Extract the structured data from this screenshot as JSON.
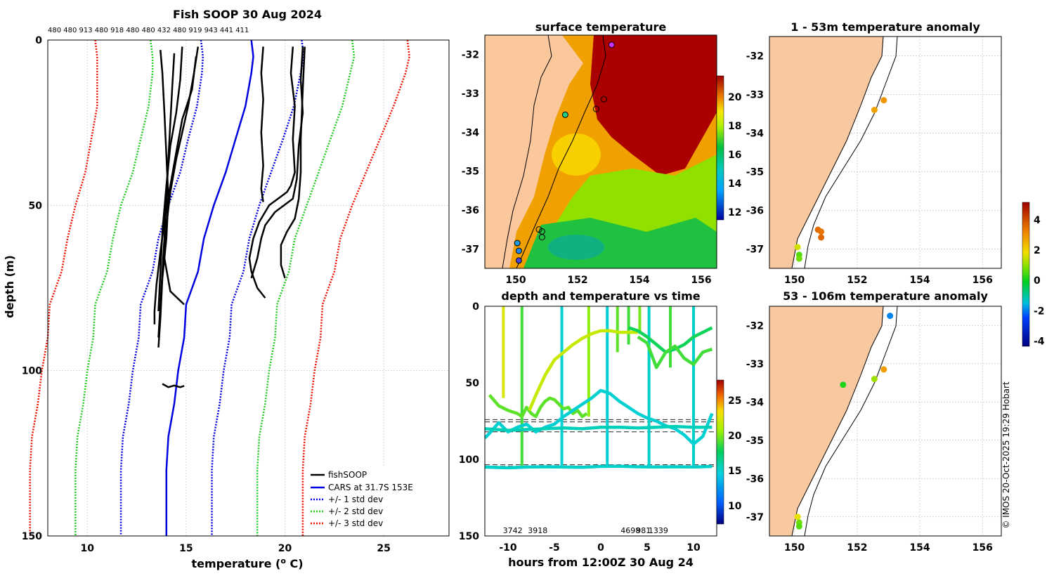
{
  "colors": {
    "land": "#f8c8a0",
    "fishsoop": "#000000",
    "cars": "#0000e0",
    "std1": "#0000e0",
    "std2": "#22cc22",
    "std3": "#ee1100"
  },
  "chart_data": [
    {
      "id": "profile",
      "type": "line",
      "title": "Fish SOOP 30 Aug 2024",
      "top_labels": "480 480 913 480 918 480 480 432 480 919 943 441 411",
      "xlabel": "temperature (",
      "xlabel_sup": "o",
      "xlabel_end": " C)",
      "ylabel": "depth (m)",
      "xlim": [
        8,
        28.3
      ],
      "ylim": [
        150,
        0
      ],
      "xticks": [
        10,
        15,
        20,
        25
      ],
      "yticks": [
        0,
        50,
        100,
        150
      ],
      "legend": {
        "position": "bottom-right",
        "entries": [
          "fishSOOP",
          "CARS at 31.7S 153E",
          "+/- 1 std dev",
          "+/- 2 std dev",
          "+/- 3 std dev"
        ]
      },
      "cars_depth": [
        0,
        5,
        10,
        20,
        30,
        40,
        50,
        60,
        70,
        80,
        90,
        100,
        110,
        120,
        130,
        140,
        150
      ],
      "cars_mean": [
        18.3,
        18.4,
        18.3,
        18.0,
        17.5,
        17.0,
        16.4,
        15.9,
        15.6,
        15.0,
        14.9,
        14.6,
        14.4,
        14.1,
        14.0,
        14.0,
        14.0
      ],
      "std1": [
        2.55,
        2.55,
        2.5,
        2.45,
        2.4,
        2.3,
        2.3,
        2.3,
        2.3,
        2.3,
        2.3,
        2.3,
        2.3,
        2.3,
        2.3,
        2.3,
        2.3
      ],
      "std2": [
        5.1,
        5.1,
        5.0,
        4.9,
        4.8,
        4.7,
        4.7,
        4.6,
        4.6,
        4.6,
        4.6,
        4.6,
        4.6,
        4.6,
        4.6,
        4.6,
        4.6
      ],
      "std3": [
        7.9,
        7.9,
        7.8,
        7.5,
        7.3,
        7.1,
        7.0,
        6.9,
        6.9,
        6.9,
        6.9,
        6.9,
        6.9,
        6.9,
        6.9,
        6.9,
        6.9
      ],
      "casts": [
        {
          "t": [
            13.7,
            13.8,
            13.9,
            14.0,
            14.1,
            14.0,
            13.8,
            13.7,
            13.6
          ],
          "d": [
            3,
            10,
            22,
            35,
            48,
            60,
            72,
            84,
            93
          ]
        },
        {
          "t": [
            14.4,
            14.3,
            14.2,
            14.1,
            14.0,
            13.9,
            13.8,
            13.7,
            13.6
          ],
          "d": [
            4,
            14,
            25,
            36,
            48,
            60,
            70,
            80,
            90
          ]
        },
        {
          "t": [
            14.8,
            14.7,
            14.5,
            14.2,
            14.0,
            13.8,
            13.7,
            13.6
          ],
          "d": [
            2,
            12,
            22,
            32,
            44,
            58,
            70,
            82
          ]
        },
        {
          "t": [
            15.6,
            15.4,
            15.1,
            14.8,
            14.5,
            14.2,
            14.0,
            13.9,
            14.2,
            14.9
          ],
          "d": [
            2,
            10,
            20,
            28,
            36,
            46,
            56,
            66,
            76,
            80
          ]
        },
        {
          "t": [
            15.5,
            15.3,
            14.8,
            14.5,
            14.2,
            13.9,
            13.7,
            13.5,
            13.4,
            13.4
          ],
          "d": [
            5,
            15,
            24,
            34,
            44,
            55,
            64,
            74,
            82,
            86
          ]
        },
        {
          "t": [
            13.8,
            14.1,
            14.4,
            14.7,
            14.9
          ],
          "d": [
            104,
            105,
            104.5,
            105,
            104.6
          ]
        },
        {
          "t": [
            18.9,
            18.8,
            18.9,
            18.8,
            18.9,
            18.8,
            18.9
          ],
          "d": [
            2,
            10,
            18,
            28,
            38,
            45,
            49
          ]
        },
        {
          "t": [
            20.4,
            20.3,
            20.5,
            20.4,
            20.5,
            20.3,
            20.1,
            19.2,
            18.7,
            18.4,
            18.2,
            18.3,
            18.6,
            19.0
          ],
          "d": [
            2,
            10,
            20,
            30,
            40,
            44,
            46,
            50,
            55,
            60,
            66,
            70,
            75,
            78
          ]
        },
        {
          "t": [
            20.9,
            20.8,
            20.9,
            20.7,
            20.6,
            20.4,
            19.5,
            19.0,
            18.8,
            18.6,
            18.3
          ],
          "d": [
            2,
            12,
            22,
            32,
            42,
            48,
            52,
            56,
            60,
            66,
            72
          ]
        },
        {
          "t": [
            21.0,
            20.9,
            20.8,
            20.8,
            20.7,
            20.5,
            20.1,
            19.8,
            19.8,
            20.0
          ],
          "d": [
            2,
            15,
            30,
            40,
            48,
            54,
            58,
            62,
            68,
            72
          ]
        }
      ]
    },
    {
      "id": "sst_map",
      "type": "heatmap",
      "title": "surface temperature",
      "xlim": [
        149,
        156.5
      ],
      "ylim": [
        -37.5,
        -31.5
      ],
      "xticks": [
        150,
        152,
        154,
        156
      ],
      "yticks": [
        -32,
        -33,
        -34,
        -35,
        -36,
        -37
      ],
      "colorbar_ticks": [
        12,
        14,
        16,
        18,
        20
      ],
      "colorbar_range": [
        11.5,
        21.5
      ],
      "casts": [
        {
          "lon": 153.1,
          "lat": -31.75,
          "fill": "#cc33ff"
        },
        {
          "lon": 152.85,
          "lat": -33.15,
          "fill": "none"
        },
        {
          "lon": 152.6,
          "lat": -33.4,
          "fill": "none"
        },
        {
          "lon": 151.6,
          "lat": -33.55,
          "fill": "#22cc88"
        },
        {
          "lon": 150.75,
          "lat": -36.5,
          "fill": "none"
        },
        {
          "lon": 150.85,
          "lat": -36.55,
          "fill": "none"
        },
        {
          "lon": 150.85,
          "lat": -36.7,
          "fill": "none"
        },
        {
          "lon": 150.05,
          "lat": -36.85,
          "fill": "#2299dd"
        },
        {
          "lon": 150.1,
          "lat": -37.05,
          "fill": "#2288ee"
        },
        {
          "lon": 150.1,
          "lat": -37.3,
          "fill": "#4444dd"
        }
      ]
    },
    {
      "id": "anomaly_upper",
      "type": "scatter",
      "title": "1 - 53m temperature anomaly",
      "xlim": [
        149.2,
        156.6
      ],
      "ylim": [
        -37.5,
        -31.5
      ],
      "xticks": [
        150,
        152,
        154,
        156
      ],
      "yticks": [
        -32,
        -33,
        -34,
        -35,
        -36,
        -37
      ],
      "points": [
        {
          "lon": 152.85,
          "lat": -33.15,
          "anomaly": 3.0
        },
        {
          "lon": 152.55,
          "lat": -33.4,
          "anomaly": 2.8
        },
        {
          "lon": 150.75,
          "lat": -36.5,
          "anomaly": 3.6
        },
        {
          "lon": 150.85,
          "lat": -36.55,
          "anomaly": 3.5
        },
        {
          "lon": 150.85,
          "lat": -36.7,
          "anomaly": 3.7
        },
        {
          "lon": 150.1,
          "lat": -36.95,
          "anomaly": 1.6
        },
        {
          "lon": 150.15,
          "lat": -37.15,
          "anomaly": 0.6
        },
        {
          "lon": 150.15,
          "lat": -37.25,
          "anomaly": 0.8
        }
      ]
    },
    {
      "id": "anomaly_lower",
      "type": "scatter",
      "title": "53 - 106m temperature anomaly",
      "xlim": [
        149.2,
        156.6
      ],
      "ylim": [
        -37.5,
        -31.5
      ],
      "xticks": [
        150,
        152,
        154,
        156
      ],
      "yticks": [
        -32,
        -33,
        -34,
        -35,
        -36,
        -37
      ],
      "points": [
        {
          "lon": 153.05,
          "lat": -31.75,
          "anomaly": -1.9
        },
        {
          "lon": 152.85,
          "lat": -33.15,
          "anomaly": 2.9
        },
        {
          "lon": 152.55,
          "lat": -33.4,
          "anomaly": 1.2
        },
        {
          "lon": 151.55,
          "lat": -33.55,
          "anomaly": 0.2
        },
        {
          "lon": 150.1,
          "lat": -37.0,
          "anomaly": 1.8
        },
        {
          "lon": 150.15,
          "lat": -37.15,
          "anomaly": 0.8
        },
        {
          "lon": 150.15,
          "lat": -37.25,
          "anomaly": 0.6
        }
      ],
      "colorbar_ticks": [
        -4,
        -2,
        0,
        2,
        4
      ],
      "colorbar_range": [
        -4.3,
        5.2
      ]
    },
    {
      "id": "depth_time",
      "type": "scatter",
      "title": "depth and temperature vs time",
      "xlabel": "hours from 12:00Z 30 Aug 24",
      "xlim": [
        -12.5,
        12.5
      ],
      "ylim": [
        150,
        0
      ],
      "xticks": [
        -10,
        -5,
        0,
        5,
        10
      ],
      "yticks": [
        0,
        50,
        100,
        150
      ],
      "colorbar_ticks": [
        10,
        15,
        20,
        25
      ],
      "colorbar_range": [
        7.5,
        28
      ],
      "bottom_labels": [
        {
          "text": "3742",
          "hour": -9.5
        },
        {
          "text": "3918",
          "hour": -6.8
        },
        {
          "text": "4698",
          "hour": 3.2
        },
        {
          "text": "1339",
          "hour": 6.2
        },
        {
          "text": "981",
          "hour": 4.6
        }
      ],
      "ref_depths": [
        74,
        75.5,
        82,
        103.5,
        104.5
      ],
      "tracks": [
        {
          "temp": 19.5,
          "h": [
            -12,
            -11,
            -10,
            -9,
            -8.5,
            -8,
            -7.5,
            -7,
            -6.5,
            -6,
            -5.5,
            -5,
            -4.5,
            -4,
            -3.5,
            -3,
            -2.5,
            -2,
            -1.5
          ],
          "d": [
            58,
            65,
            68,
            70,
            72,
            66,
            70,
            72,
            66,
            62,
            60,
            61,
            64,
            67,
            66,
            70,
            68,
            72,
            70
          ]
        },
        {
          "temp": 22,
          "h": [
            -7.7,
            -7,
            -6,
            -5,
            -4,
            -3,
            -2,
            -1,
            0,
            1,
            2,
            3,
            4
          ],
          "d": [
            68,
            58,
            45,
            35,
            30,
            25,
            21,
            18,
            16,
            16,
            17,
            17,
            17
          ]
        },
        {
          "temp": 18,
          "h": [
            3,
            4,
            5,
            6,
            7,
            8,
            9,
            10,
            11,
            12
          ],
          "d": [
            14,
            16,
            20,
            25,
            30,
            28,
            25,
            20,
            17,
            14
          ]
        },
        {
          "temp": 19,
          "h": [
            4,
            5,
            6,
            7,
            8,
            9,
            10,
            11,
            12
          ],
          "d": [
            20,
            24,
            40,
            30,
            26,
            34,
            38,
            30,
            28
          ]
        },
        {
          "temp": 15,
          "h": [
            -12.5,
            -12,
            -11,
            -10,
            -9,
            -8,
            -7,
            -6,
            -5,
            -4,
            -3,
            -2,
            -1,
            0,
            1,
            2,
            3,
            4,
            5,
            6,
            7,
            8,
            9,
            10,
            11,
            12
          ],
          "d": [
            86,
            83,
            76,
            82,
            79,
            77,
            82,
            79,
            77,
            72,
            68,
            64,
            60,
            55,
            57,
            62,
            66,
            70,
            73,
            75,
            78,
            80,
            84,
            90,
            85,
            70
          ]
        },
        {
          "temp": 15.6,
          "h": [
            -12.5,
            -10,
            -8,
            -6,
            -4,
            -2,
            0,
            2,
            4,
            6,
            8,
            10,
            12
          ],
          "d": [
            80,
            81,
            80.5,
            80,
            79.5,
            80,
            79,
            79,
            79.5,
            79,
            78.5,
            79,
            79
          ]
        },
        {
          "temp": 15.2,
          "h": [
            -12.5,
            -10,
            -8,
            -6,
            -4,
            -2,
            0,
            2,
            4,
            6,
            8,
            10,
            12
          ],
          "d": [
            105,
            105.5,
            105,
            104.8,
            105,
            105.2,
            104.6,
            104.5,
            104.8,
            105,
            104.8,
            105,
            104.6
          ]
        }
      ],
      "casts": [
        {
          "h": -10.5,
          "bottom": 60,
          "temp": 22.5
        },
        {
          "h": -8.5,
          "bottom": 105,
          "temp": 19
        },
        {
          "h": -4.2,
          "bottom": 105,
          "temp": 15
        },
        {
          "h": -1.3,
          "bottom": 72,
          "temp": 20.5
        },
        {
          "h": 0.7,
          "bottom": 105,
          "temp": 15
        },
        {
          "h": 1.8,
          "bottom": 30,
          "temp": 19.5
        },
        {
          "h": 3.0,
          "bottom": 25,
          "temp": 19
        },
        {
          "h": 4.2,
          "bottom": 18,
          "temp": 20
        },
        {
          "h": 5.2,
          "bottom": 105,
          "temp": 15.2
        },
        {
          "h": 7.5,
          "bottom": 40,
          "temp": 19
        },
        {
          "h": 10.0,
          "bottom": 105,
          "temp": 15.2
        }
      ]
    }
  ],
  "copyright": "© IMOS 20-Oct-2025 19:29 Hobart"
}
